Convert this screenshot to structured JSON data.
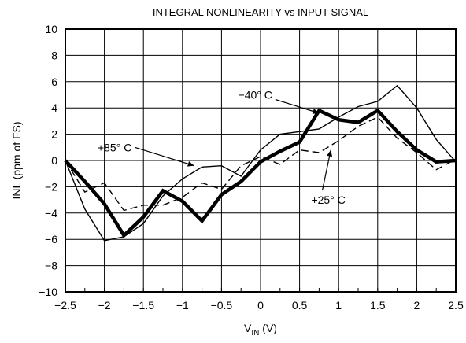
{
  "chart_data": {
    "type": "line",
    "title": "INTEGRAL NONLINEARITY vs INPUT SIGNAL",
    "xlabel": {
      "main": "V",
      "sub": "IN",
      "unit": " (V)"
    },
    "ylabel": "INL (ppm of FS)",
    "xlim": [
      -2.5,
      2.5
    ],
    "ylim": [
      -10,
      10
    ],
    "x_ticks": [
      -2.5,
      -2,
      -1.5,
      -1,
      -0.5,
      0,
      0.5,
      1,
      1.5,
      2,
      2.5
    ],
    "x_tick_labels": [
      "−2.5",
      "−2",
      "−1.5",
      "−1",
      "−0.5",
      "0",
      "0.5",
      "1",
      "1.5",
      "2",
      "2.5"
    ],
    "y_ticks": [
      10,
      8,
      6,
      4,
      2,
      0,
      -2,
      -4,
      -6,
      -8,
      -10
    ],
    "y_tick_labels": [
      "10",
      "8",
      "6",
      "4",
      "2",
      "0",
      "−2",
      "−4",
      "−6",
      "−8",
      "−10"
    ],
    "grid": true,
    "x_minor_step": 0.25,
    "series": [
      {
        "name": "+85°C",
        "style": "thin",
        "x": [
          -2.5,
          -2.25,
          -2,
          -1.75,
          -1.5,
          -1.25,
          -1,
          -0.75,
          -0.5,
          -0.25,
          0,
          0.25,
          0.5,
          0.75,
          1,
          1.25,
          1.5,
          1.75,
          2,
          2.25,
          2.5
        ],
        "y": [
          0,
          -3.7,
          -6.1,
          -5.8,
          -4.8,
          -2.7,
          -1.4,
          -0.5,
          -0.4,
          -1.2,
          0.8,
          2,
          2.2,
          2.4,
          3.3,
          4.1,
          4.5,
          5.7,
          4,
          1.6,
          -0.1
        ]
      },
      {
        "name": "−40°C",
        "style": "thick",
        "x": [
          -2.5,
          -2.25,
          -2,
          -1.75,
          -1.5,
          -1.25,
          -1,
          -0.75,
          -0.5,
          -0.25,
          0,
          0.25,
          0.5,
          0.75,
          1,
          1.25,
          1.5,
          1.75,
          2,
          2.25,
          2.5
        ],
        "y": [
          0,
          -1.6,
          -3.3,
          -5.7,
          -4.3,
          -2.3,
          -3.1,
          -4.6,
          -2.6,
          -1.6,
          -0.1,
          0.7,
          1.4,
          3.8,
          3.1,
          2.9,
          3.8,
          2.2,
          0.8,
          -0.1,
          0
        ]
      },
      {
        "name": "+25°C",
        "style": "dashed",
        "x": [
          -2.5,
          -2.25,
          -2,
          -1.75,
          -1.5,
          -1.25,
          -1,
          -0.75,
          -0.5,
          -0.25,
          0,
          0.25,
          0.5,
          0.75,
          1,
          1.25,
          1.5,
          1.75,
          2,
          2.25,
          2.5
        ],
        "y": [
          0,
          -2.4,
          -1.7,
          -3.8,
          -3.4,
          -3.4,
          -2.8,
          -1.7,
          -2.2,
          -0.4,
          0.3,
          -0.3,
          0.8,
          0.6,
          1.5,
          2.6,
          3.3,
          1.7,
          0.6,
          -0.7,
          0.1
        ]
      }
    ],
    "annotations": [
      {
        "text": "−40° C",
        "series": "−40°C",
        "position": "above-left",
        "x": 0.15,
        "y": 5.0,
        "arrow_to": [
          0.75,
          3.6
        ]
      },
      {
        "text": "+85° C",
        "series": "+85°C",
        "position": "left",
        "x": -1.65,
        "y": 1.0,
        "arrow_to": [
          -0.85,
          -0.4
        ]
      },
      {
        "text": "+25° C",
        "series": "+25°C",
        "position": "below-right",
        "x": 0.65,
        "y": -3.0,
        "arrow_to": [
          0.9,
          0.8
        ]
      }
    ]
  }
}
